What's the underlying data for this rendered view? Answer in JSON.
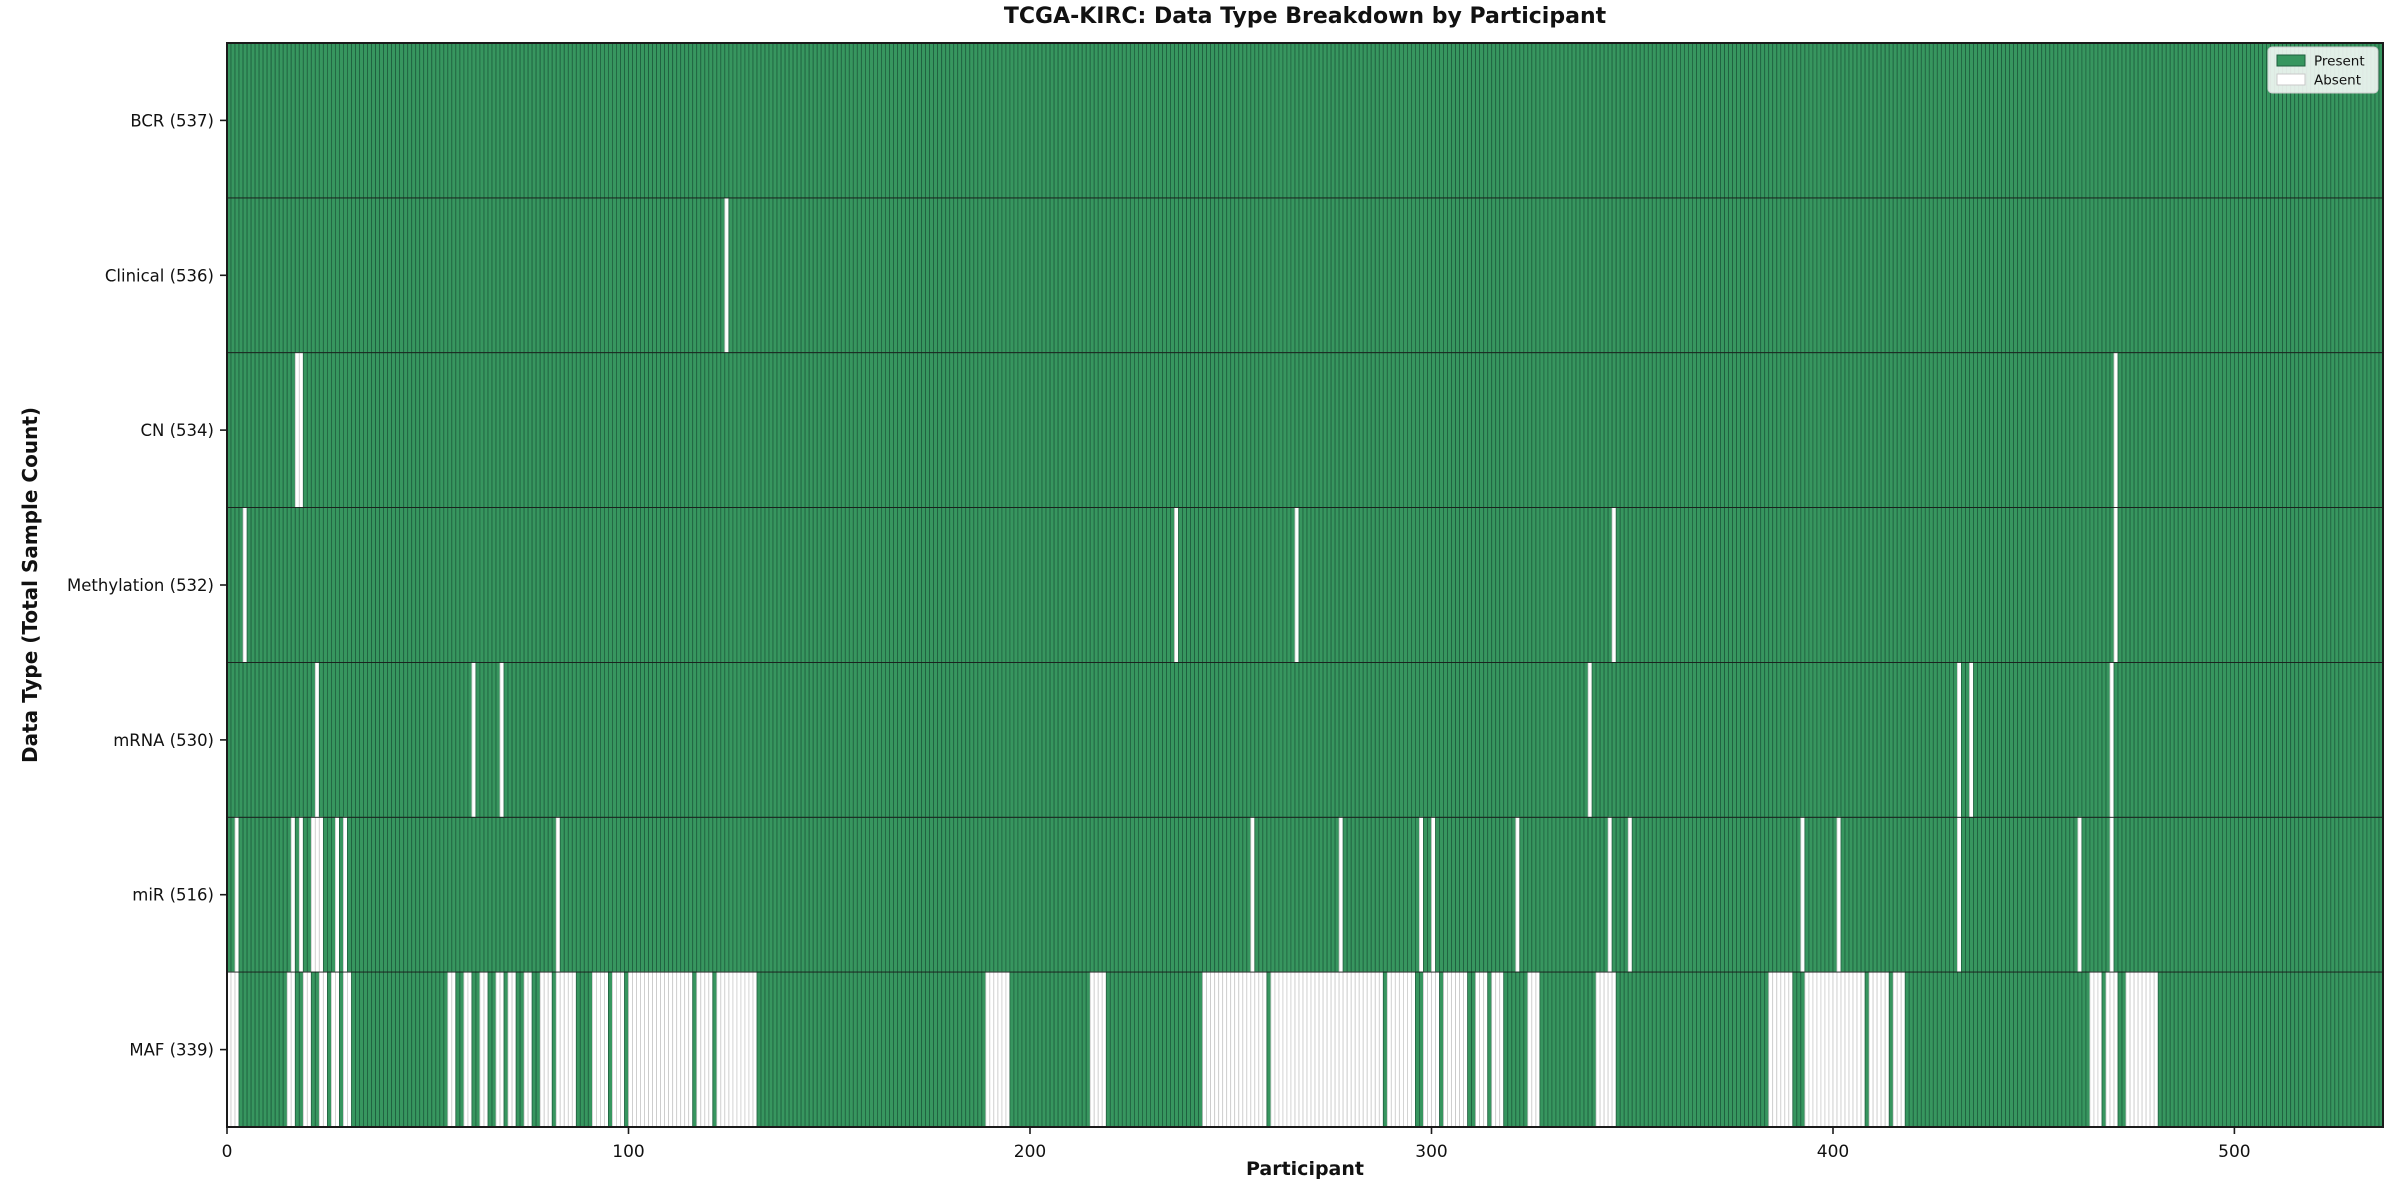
{
  "chart_data": {
    "type": "heatmap",
    "title": "TCGA-KIRC: Data Type Breakdown by Participant",
    "xlabel": "Participant",
    "ylabel": "Data Type (Total Sample Count)",
    "x_ticks": [
      0,
      100,
      200,
      300,
      400,
      500
    ],
    "x_range": [
      0,
      537
    ],
    "n_participants": 537,
    "grid": false,
    "legend": {
      "position": "upper right",
      "entries": [
        {
          "label": "Present",
          "color": "#37965f"
        },
        {
          "label": "Absent",
          "color": "#ffffff"
        }
      ]
    },
    "colors": {
      "present_fill": "#37965f",
      "present_edge": "#1e5e3e",
      "absent_fill": "#ffffff",
      "absent_edge": "#c9c9c9",
      "frame": "#1a1a1a",
      "text": "#111111"
    },
    "rows": [
      {
        "data_type": "BCR",
        "label": "BCR (537)",
        "total": 537,
        "absent": [],
        "absent_ranges": []
      },
      {
        "data_type": "Clinical",
        "label": "Clinical (536)",
        "total": 536,
        "absent": [
          124
        ],
        "absent_ranges": []
      },
      {
        "data_type": "CN",
        "label": "CN (534)",
        "total": 534,
        "absent": [
          17,
          18,
          470
        ],
        "absent_ranges": []
      },
      {
        "data_type": "Methylation",
        "label": "Methylation (532)",
        "total": 532,
        "absent": [
          4,
          236,
          266,
          345,
          470
        ],
        "absent_ranges": []
      },
      {
        "data_type": "mRNA",
        "label": "mRNA (530)",
        "total": 530,
        "absent": [
          22,
          61,
          68,
          339,
          431,
          434,
          469
        ],
        "absent_ranges": []
      },
      {
        "data_type": "miR",
        "label": "miR (516)",
        "total": 516,
        "absent": [
          2,
          16,
          18,
          21,
          22,
          23,
          27,
          29,
          82,
          255,
          277,
          297,
          300,
          321,
          344,
          349,
          392,
          401,
          431,
          461,
          469
        ],
        "absent_ranges": []
      },
      {
        "data_type": "MAF",
        "label": "MAF (339)",
        "total": 339,
        "absent": [],
        "absent_ranges": [
          [
            0,
            2
          ],
          [
            15,
            16
          ],
          [
            19,
            20
          ],
          [
            23,
            24
          ],
          [
            26,
            27
          ],
          [
            29,
            30
          ],
          [
            55,
            56
          ],
          [
            59,
            60
          ],
          [
            63,
            64
          ],
          [
            67,
            68
          ],
          [
            70,
            71
          ],
          [
            74,
            75
          ],
          [
            78,
            80
          ],
          [
            82,
            86
          ],
          [
            91,
            94
          ],
          [
            96,
            98
          ],
          [
            100,
            115
          ],
          [
            117,
            120
          ],
          [
            122,
            131
          ],
          [
            189,
            194
          ],
          [
            215,
            218
          ],
          [
            243,
            258
          ],
          [
            260,
            268
          ],
          [
            269,
            287
          ],
          [
            289,
            295
          ],
          [
            298,
            301
          ],
          [
            303,
            308
          ],
          [
            311,
            313
          ],
          [
            315,
            317
          ],
          [
            324,
            326
          ],
          [
            341,
            345
          ],
          [
            384,
            389
          ],
          [
            393,
            407
          ],
          [
            409,
            413
          ],
          [
            415,
            417
          ],
          [
            464,
            466
          ],
          [
            468,
            470
          ],
          [
            473,
            480
          ]
        ]
      }
    ]
  }
}
